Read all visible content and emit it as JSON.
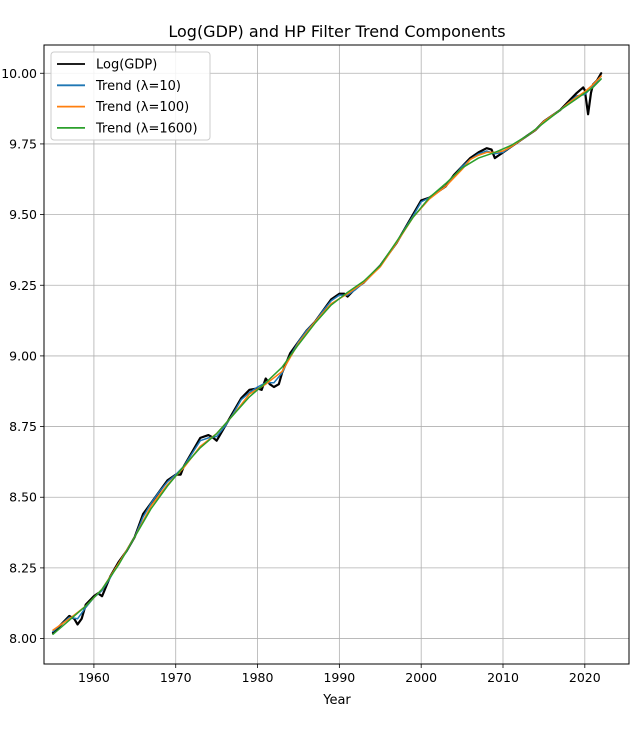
{
  "chart_data": {
    "type": "line",
    "title": "Log(GDP) and HP Filter Trend Components",
    "xlabel": "Year",
    "ylabel": "",
    "xlim": [
      1953.9,
      2025.4
    ],
    "ylim": [
      7.91,
      10.1
    ],
    "x_ticks": [
      1960,
      1970,
      1980,
      1990,
      2000,
      2010,
      2020
    ],
    "y_ticks": [
      8.0,
      8.25,
      8.5,
      8.75,
      9.0,
      9.25,
      9.5,
      9.75,
      10.0
    ],
    "x_tick_labels": [
      "1960",
      "1970",
      "1980",
      "1990",
      "2000",
      "2010",
      "2020"
    ],
    "y_tick_labels": [
      "8.00",
      "8.25",
      "8.50",
      "8.75",
      "9.00",
      "9.25",
      "9.50",
      "9.75",
      "10.00"
    ],
    "grid": true,
    "legend_position": "top-left",
    "series": [
      {
        "name": "Log(GDP)",
        "color": "#000000",
        "x": [
          1955,
          1956,
          1957,
          1957.6,
          1958,
          1958.5,
          1959,
          1960,
          1960.5,
          1961,
          1962,
          1963,
          1964,
          1965,
          1966,
          1967,
          1968,
          1969,
          1970,
          1970.6,
          1971,
          1972,
          1973,
          1974,
          1974.6,
          1975,
          1976,
          1977,
          1978,
          1979,
          1980,
          1980.5,
          1981,
          1981.5,
          1982,
          1982.6,
          1983,
          1984,
          1985,
          1986,
          1987,
          1988,
          1989,
          1990,
          1990.6,
          1991,
          1992,
          1993,
          1994,
          1995,
          1996,
          1997,
          1998,
          1999,
          2000,
          2001,
          2002,
          2003,
          2004,
          2005,
          2006,
          2007,
          2008,
          2008.6,
          2009,
          2009.5,
          2010,
          2011,
          2012,
          2013,
          2014,
          2015,
          2016,
          2017,
          2018,
          2019,
          2019.8,
          2020,
          2020.4,
          2020.75,
          2021,
          2021.5,
          2022
        ],
        "y": [
          8.02,
          8.05,
          8.08,
          8.07,
          8.05,
          8.07,
          8.12,
          8.15,
          8.16,
          8.15,
          8.22,
          8.27,
          8.31,
          8.36,
          8.44,
          8.48,
          8.52,
          8.56,
          8.58,
          8.58,
          8.61,
          8.66,
          8.71,
          8.72,
          8.71,
          8.7,
          8.75,
          8.8,
          8.85,
          8.88,
          8.885,
          8.88,
          8.92,
          8.9,
          8.89,
          8.9,
          8.94,
          9.01,
          9.05,
          9.09,
          9.12,
          9.16,
          9.2,
          9.22,
          9.22,
          9.21,
          9.24,
          9.26,
          9.29,
          9.32,
          9.36,
          9.4,
          9.45,
          9.5,
          9.55,
          9.56,
          9.58,
          9.6,
          9.64,
          9.67,
          9.7,
          9.72,
          9.735,
          9.73,
          9.7,
          9.71,
          9.72,
          9.74,
          9.76,
          9.78,
          9.8,
          9.83,
          9.85,
          9.87,
          9.9,
          9.93,
          9.95,
          9.94,
          9.855,
          9.93,
          9.96,
          9.975,
          10.0
        ]
      },
      {
        "name": "Trend (λ=10)",
        "color": "#1f77b4",
        "x": [
          1955,
          1956,
          1957,
          1958,
          1959,
          1960,
          1961,
          1962,
          1963,
          1964,
          1965,
          1966,
          1967,
          1968,
          1969,
          1970,
          1971,
          1972,
          1973,
          1974,
          1975,
          1976,
          1977,
          1978,
          1979,
          1980,
          1981,
          1982,
          1983,
          1984,
          1985,
          1986,
          1987,
          1988,
          1989,
          1990,
          1991,
          1992,
          1993,
          1994,
          1995,
          1996,
          1997,
          1998,
          1999,
          2000,
          2001,
          2002,
          2003,
          2004,
          2005,
          2006,
          2007,
          2008,
          2009,
          2010,
          2011,
          2012,
          2013,
          2014,
          2015,
          2016,
          2017,
          2018,
          2019,
          2020,
          2021,
          2022
        ],
        "y": [
          8.025,
          8.05,
          8.075,
          8.07,
          8.11,
          8.145,
          8.17,
          8.215,
          8.265,
          8.31,
          8.36,
          8.43,
          8.48,
          8.52,
          8.555,
          8.58,
          8.61,
          8.655,
          8.7,
          8.71,
          8.715,
          8.75,
          8.795,
          8.845,
          8.87,
          8.89,
          8.905,
          8.905,
          8.94,
          9.0,
          9.05,
          9.09,
          9.12,
          9.16,
          9.195,
          9.215,
          9.215,
          9.235,
          9.26,
          9.29,
          9.32,
          9.36,
          9.4,
          9.45,
          9.495,
          9.545,
          9.56,
          9.58,
          9.6,
          9.635,
          9.67,
          9.695,
          9.715,
          9.725,
          9.715,
          9.72,
          9.74,
          9.76,
          9.78,
          9.8,
          9.83,
          9.85,
          9.87,
          9.895,
          9.92,
          9.925,
          9.955,
          9.99
        ]
      },
      {
        "name": "Trend (λ=100)",
        "color": "#ff7f0e",
        "x": [
          1955,
          1957,
          1959,
          1961,
          1963,
          1965,
          1967,
          1969,
          1971,
          1973,
          1975,
          1977,
          1979,
          1981,
          1983,
          1985,
          1987,
          1989,
          1991,
          1993,
          1995,
          1997,
          1999,
          2001,
          2003,
          2005,
          2006,
          2007,
          2008,
          2009,
          2010,
          2011,
          2012,
          2013,
          2014,
          2015,
          2016,
          2017,
          2018,
          2019,
          2020,
          2021,
          2022
        ],
        "y": [
          8.03,
          8.07,
          8.115,
          8.175,
          8.265,
          8.36,
          8.47,
          8.545,
          8.605,
          8.68,
          8.725,
          8.79,
          8.865,
          8.9,
          8.945,
          9.045,
          9.12,
          9.185,
          9.22,
          9.26,
          9.315,
          9.4,
          9.49,
          9.555,
          9.6,
          9.66,
          9.695,
          9.71,
          9.72,
          9.72,
          9.725,
          9.74,
          9.76,
          9.78,
          9.8,
          9.83,
          9.85,
          9.87,
          9.895,
          9.915,
          9.935,
          9.96,
          9.99
        ]
      },
      {
        "name": "Trend (λ=1600)",
        "color": "#2ca02c",
        "x": [
          1955,
          1957,
          1959,
          1961,
          1963,
          1965,
          1967,
          1969,
          1971,
          1973,
          1975,
          1977,
          1979,
          1981,
          1983,
          1985,
          1987,
          1989,
          1991,
          1993,
          1995,
          1997,
          1999,
          2001,
          2003,
          2005,
          2007,
          2009,
          2011,
          2013,
          2015,
          2017,
          2019,
          2020,
          2021,
          2022
        ],
        "y": [
          8.015,
          8.065,
          8.115,
          8.175,
          8.26,
          8.36,
          8.46,
          8.54,
          8.61,
          8.675,
          8.725,
          8.79,
          8.855,
          8.905,
          8.96,
          9.04,
          9.115,
          9.18,
          9.225,
          9.265,
          9.32,
          9.405,
          9.49,
          9.56,
          9.61,
          9.665,
          9.7,
          9.72,
          9.745,
          9.78,
          9.825,
          9.87,
          9.91,
          9.93,
          9.95,
          9.98
        ]
      }
    ]
  }
}
